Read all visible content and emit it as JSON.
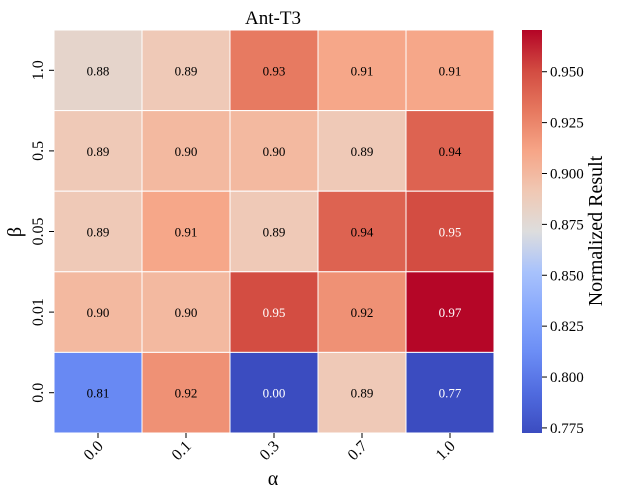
{
  "chart_data": {
    "type": "heatmap",
    "title": "Ant-T3",
    "xlabel": "α",
    "ylabel": "β",
    "x_categories": [
      "0.0",
      "0.1",
      "0.3",
      "0.7",
      "1.0"
    ],
    "y_categories": [
      "1.0",
      "0.5",
      "0.05",
      "0.01",
      "0.0"
    ],
    "values": [
      [
        0.88,
        0.89,
        0.93,
        0.91,
        0.91
      ],
      [
        0.89,
        0.9,
        0.9,
        0.89,
        0.94
      ],
      [
        0.89,
        0.91,
        0.89,
        0.94,
        0.95
      ],
      [
        0.9,
        0.9,
        0.95,
        0.92,
        0.97
      ],
      [
        0.81,
        0.92,
        0.0,
        0.89,
        0.77
      ]
    ],
    "cell_labels": [
      [
        "0.88",
        "0.89",
        "0.93",
        "0.91",
        "0.91"
      ],
      [
        "0.89",
        "0.90",
        "0.90",
        "0.89",
        "0.94"
      ],
      [
        "0.89",
        "0.91",
        "0.89",
        "0.94",
        "0.95"
      ],
      [
        "0.90",
        "0.90",
        "0.95",
        "0.92",
        "0.97"
      ],
      [
        "0.81",
        "0.92",
        "0.00",
        "0.89",
        "0.77"
      ]
    ],
    "colorbar": {
      "label": "Normalized Result",
      "range": [
        0.7725,
        0.9705
      ],
      "ticks": [
        0.775,
        0.8,
        0.825,
        0.85,
        0.875,
        0.9,
        0.925,
        0.95
      ],
      "tick_labels": [
        "0.775",
        "0.800",
        "0.825",
        "0.850",
        "0.875",
        "0.900",
        "0.925",
        "0.950"
      ],
      "colormap": "coolwarm"
    }
  }
}
